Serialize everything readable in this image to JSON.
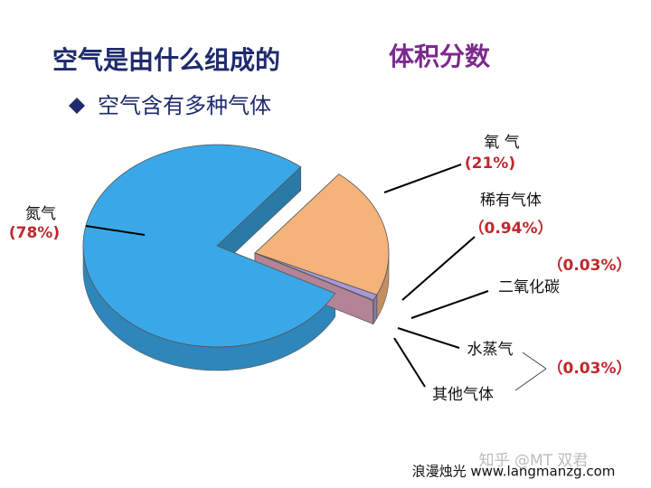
{
  "chart_data": {
    "type": "pie",
    "title": "空气是由什么组成的",
    "subtitle": "体积分数",
    "bullet": "空气含有多种气体",
    "categories": [
      "氮气",
      "氧 气",
      "稀有气体",
      "二氧化碳",
      [
        "水蒸气",
        "其他气体"
      ]
    ],
    "values": [
      78,
      21,
      0.94,
      0.03,
      0.03
    ],
    "value_labels": [
      "(78%)",
      "(21%)",
      "（0.94%）",
      "（0.03%）",
      "（0.03%）"
    ],
    "colors": [
      "#3aa8e8",
      "#f4b37a",
      "#a898d8",
      "#e4f3d4",
      [
        "#ffffd8",
        "#f7b8d0"
      ]
    ]
  },
  "watermark": "知乎 @MT 双君",
  "footer": "浪漫烛光 www.langmanzg.com"
}
